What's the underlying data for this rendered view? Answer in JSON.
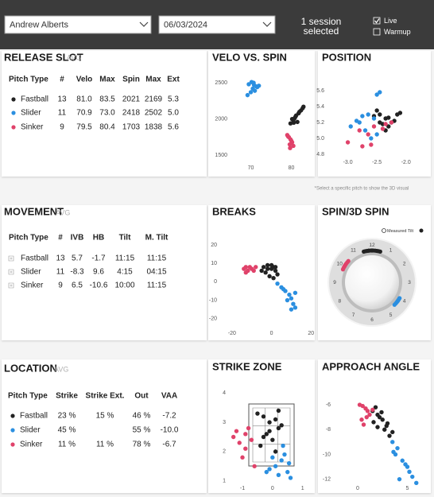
{
  "header": {
    "player": "Andrew Alberts",
    "date": "06/03/2024",
    "session_lines": [
      "1 session",
      "selected"
    ],
    "filters": [
      {
        "label": "Live",
        "checked": true
      },
      {
        "label": "Warmup",
        "checked": false
      }
    ]
  },
  "tables": [
    {
      "title": "RELEASE SLOT",
      "subtitle": "AVG",
      "columns": [
        "Pitch Type",
        "#",
        "Velo",
        "Max",
        "Spin",
        "Max",
        "Ext"
      ],
      "row_colors": [
        "#222222",
        "#2b8fe0",
        "#e0426a"
      ],
      "rows": [
        [
          "Fastball",
          "13",
          "81.0",
          "83.5",
          "2021",
          "2169",
          "5.3"
        ],
        [
          "Slider",
          "11",
          "70.9",
          "73.0",
          "2418",
          "2502",
          "5.0"
        ],
        [
          "Sinker",
          "9",
          "79.5",
          "80.4",
          "1703",
          "1838",
          "5.6"
        ]
      ]
    },
    {
      "title": "MOVEMENT",
      "subtitle": "AVG",
      "columns": [
        "Pitch Type",
        "#",
        "IVB",
        "HB",
        "Tilt",
        "M. Tilt"
      ],
      "rows": [
        [
          "Fastball",
          "13",
          "5.7",
          "-1.7",
          "11:15",
          "11:15"
        ],
        [
          "Slider",
          "11",
          "-8.3",
          "9.6",
          "4:15",
          "04:15"
        ],
        [
          "Sinker",
          "9",
          "6.5",
          "-10.6",
          "10:00",
          "11:15"
        ]
      ]
    },
    {
      "title": "LOCATION",
      "subtitle": "AVG",
      "columns": [
        "Pitch Type",
        "Strike",
        "Strike Ext.",
        "Out",
        "VAA"
      ],
      "row_colors": [
        "#222222",
        "#2b8fe0",
        "#e0426a"
      ],
      "rows": [
        [
          "Fastball",
          "23 %",
          "15 %",
          "46 %",
          "-7.2"
        ],
        [
          "Slider",
          "45 %",
          null,
          "55 %",
          "-10.0"
        ],
        [
          "Sinker",
          "11 %",
          "11 %",
          "78 %",
          "-6.7"
        ]
      ]
    }
  ],
  "note": "*Select a specific pitch to show the 3D visual",
  "chart_data": [
    {
      "type": "scatter",
      "title": "VELO VS. SPIN",
      "xlim": [
        65,
        85
      ],
      "ylim": [
        1350,
        2600
      ],
      "xticks": [
        70,
        80
      ],
      "yticks": [
        1500,
        2000,
        2500
      ],
      "grid": false,
      "series": [
        {
          "color": "#222222",
          "x": [
            80.5,
            81.2,
            82.0,
            82.8,
            80.8,
            81.5,
            80.2,
            81.8,
            82.4,
            80.6,
            81.0,
            83.0,
            79.8
          ],
          "values": [
            1980,
            2050,
            2100,
            2150,
            2010,
            1960,
            2000,
            2080,
            2120,
            1950,
            2030,
            2170,
            1940
          ]
        },
        {
          "color": "#2b8fe0",
          "x": [
            69.5,
            70.2,
            70.8,
            71.4,
            72.0,
            70.5,
            71.0,
            70.0,
            69.2,
            71.6,
            70.7
          ],
          "values": [
            2480,
            2510,
            2470,
            2450,
            2460,
            2420,
            2390,
            2370,
            2330,
            2440,
            2500
          ]
        },
        {
          "color": "#e0426a",
          "x": [
            79.0,
            79.4,
            79.8,
            80.2,
            79.6,
            80.5,
            79.2,
            80.0,
            79.7
          ],
          "values": [
            1780,
            1750,
            1720,
            1680,
            1650,
            1630,
            1760,
            1700,
            1600
          ]
        }
      ]
    },
    {
      "type": "scatter",
      "title": "POSITION",
      "xlim": [
        -3.35,
        -1.75
      ],
      "ylim": [
        4.72,
        5.74
      ],
      "xticks": [
        {
          "value": -3,
          "label": "-3.0"
        },
        -2.5,
        {
          "value": -2,
          "label": "-2.0"
        }
      ],
      "yticks": [
        4.8,
        {
          "value": 5,
          "label": "5.0"
        },
        5.2,
        5.4,
        5.6
      ],
      "grid": false,
      "series": [
        {
          "color": "#222222",
          "x": [
            -2.45,
            -2.35,
            -2.25,
            -2.15,
            -2.3,
            -2.5,
            -2.4,
            -2.2,
            -2.55,
            -2.1,
            -2.35,
            -2.45,
            -2.3
          ],
          "values": [
            5.3,
            5.25,
            5.2,
            5.3,
            5.15,
            5.35,
            5.18,
            5.22,
            5.28,
            5.32,
            5.1,
            5.2,
            5.26
          ]
        },
        {
          "color": "#2b8fe0",
          "x": [
            -2.45,
            -2.5,
            -2.65,
            -2.8,
            -2.95,
            -2.7,
            -2.55,
            -2.6,
            -2.85,
            -2.5,
            -2.75
          ],
          "values": [
            5.58,
            5.55,
            5.3,
            5.2,
            5.15,
            5.1,
            5.25,
            5.0,
            5.22,
            5.05,
            5.28
          ]
        },
        {
          "color": "#e0426a",
          "x": [
            -3.0,
            -2.8,
            -2.65,
            -2.55,
            -2.35,
            -2.25,
            -2.75,
            -2.4,
            -2.6
          ],
          "values": [
            4.95,
            5.1,
            5.05,
            5.15,
            5.18,
            5.2,
            4.9,
            5.12,
            4.92
          ]
        }
      ]
    },
    {
      "type": "scatter",
      "title": "BREAKS",
      "xlim": [
        -26,
        21.5
      ],
      "ylim": [
        -27,
        26
      ],
      "xticks": [
        -20,
        0,
        20
      ],
      "yticks": [
        -20,
        -10,
        0,
        10,
        20
      ],
      "grid": false,
      "series": [
        {
          "color": "#222222",
          "x": [
            -4,
            -2,
            0,
            1,
            2,
            -3,
            -1,
            3,
            0,
            -5,
            1,
            2,
            -2
          ],
          "values": [
            8,
            9,
            7,
            8,
            6,
            5,
            3,
            4,
            9,
            6,
            2,
            8,
            7
          ]
        },
        {
          "color": "#2b8fe0",
          "x": [
            3,
            5,
            7,
            9,
            10,
            11,
            12,
            8,
            6,
            10,
            12
          ],
          "values": [
            -1,
            -3,
            -5,
            -7,
            -9,
            -12,
            -14,
            -10,
            -4,
            -15,
            -6
          ]
        },
        {
          "color": "#e0426a",
          "x": [
            -14,
            -13,
            -12,
            -11,
            -10,
            -9,
            -13,
            -8,
            -12
          ],
          "values": [
            7,
            8,
            6,
            8,
            7,
            6,
            5,
            8,
            6
          ]
        }
      ]
    },
    {
      "type": "clock",
      "title": "SPIN/3D SPIN",
      "legend": [
        "Measured Tilt"
      ],
      "hour_ticks": [
        1,
        2,
        3,
        4,
        5,
        6,
        7,
        8,
        9,
        10,
        11,
        12
      ],
      "series": [
        {
          "color": "#222222",
          "values": [
            11.5,
            11.7,
            11.8,
            12.0,
            12.1,
            12.3,
            12.5,
            11.9,
            12.2,
            11.6,
            12.0,
            12.4,
            11.8
          ]
        },
        {
          "color": "#2b8fe0",
          "values": [
            4.0,
            4.1,
            4.2,
            4.3,
            4.4,
            4.2,
            4.1,
            4.3,
            4.0,
            4.5,
            4.2
          ]
        },
        {
          "color": "#e0426a",
          "values": [
            9.9,
            10.0,
            10.1,
            10.2,
            10.3,
            10.0,
            9.8,
            10.4,
            10.1
          ]
        }
      ]
    },
    {
      "type": "scatter",
      "title": "STRIKE ZONE",
      "xlim": [
        -1.45,
        1.3
      ],
      "ylim": [
        0.8,
        4.2
      ],
      "xticks": [
        -1,
        0,
        1
      ],
      "yticks": [
        1,
        2,
        3,
        4
      ],
      "grid": false,
      "series": [
        {
          "color": "#222222",
          "x": [
            -0.3,
            -0.1,
            0.1,
            0.2,
            -0.2,
            0,
            0.3,
            -0.4,
            0.1,
            -0.5,
            -0.1,
            0.2,
            -0.3
          ],
          "values": [
            3.2,
            3.0,
            3.1,
            2.8,
            2.6,
            2.4,
            2.9,
            2.2,
            2.0,
            3.3,
            2.7,
            3.4,
            2.5
          ]
        },
        {
          "color": "#2b8fe0",
          "x": [
            0,
            0.1,
            0.3,
            0.5,
            0.6,
            -0.1,
            0.4,
            0.2,
            0.55,
            0.35,
            -0.2
          ],
          "values": [
            1.8,
            1.5,
            1.7,
            1.3,
            1.1,
            1.4,
            1.9,
            1.2,
            1.6,
            2.2,
            1.3
          ]
        },
        {
          "color": "#e0426a",
          "x": [
            -1.3,
            -1.1,
            -0.9,
            -0.8,
            -1.0,
            -0.7,
            -1.2,
            -0.6,
            -0.9
          ],
          "values": [
            2.5,
            2.3,
            2.6,
            2.8,
            1.8,
            2.4,
            2.7,
            1.5,
            2.1
          ]
        }
      ]
    },
    {
      "type": "scatter",
      "title": "APPROACH ANGLE",
      "xlim": [
        -2.4,
        6.4
      ],
      "ylim": [
        -12.6,
        -5.1
      ],
      "xticks": [
        0,
        5
      ],
      "yticks": [
        -12,
        -10,
        -8,
        -6
      ],
      "grid": false,
      "series": [
        {
          "color": "#222222",
          "x": [
            1.5,
            2,
            2.5,
            3,
            2.2,
            1.8,
            2.7,
            3.2,
            2.0,
            2.4,
            1.6,
            2.9,
            3.5
          ],
          "values": [
            -6.5,
            -6.8,
            -7.2,
            -7.5,
            -7.0,
            -6.2,
            -8.0,
            -8.5,
            -7.8,
            -6.6,
            -7.4,
            -7.7,
            -8.2
          ]
        },
        {
          "color": "#2b8fe0",
          "x": [
            3.5,
            4,
            4.5,
            5,
            5.5,
            4.2,
            3.8,
            4.8,
            5.2,
            3.6,
            5.9
          ],
          "values": [
            -9,
            -9.5,
            -10.5,
            -11,
            -11.8,
            -12,
            -10,
            -10.8,
            -11.4,
            -9.8,
            -12.3
          ]
        },
        {
          "color": "#e0426a",
          "x": [
            0.2,
            0.5,
            0.8,
            1.0,
            1.2,
            0.4,
            0.9,
            1.5,
            0.6
          ],
          "values": [
            -6.0,
            -6.1,
            -6.3,
            -6.5,
            -6.8,
            -7.2,
            -7.0,
            -6.4,
            -7.6
          ]
        }
      ]
    }
  ]
}
